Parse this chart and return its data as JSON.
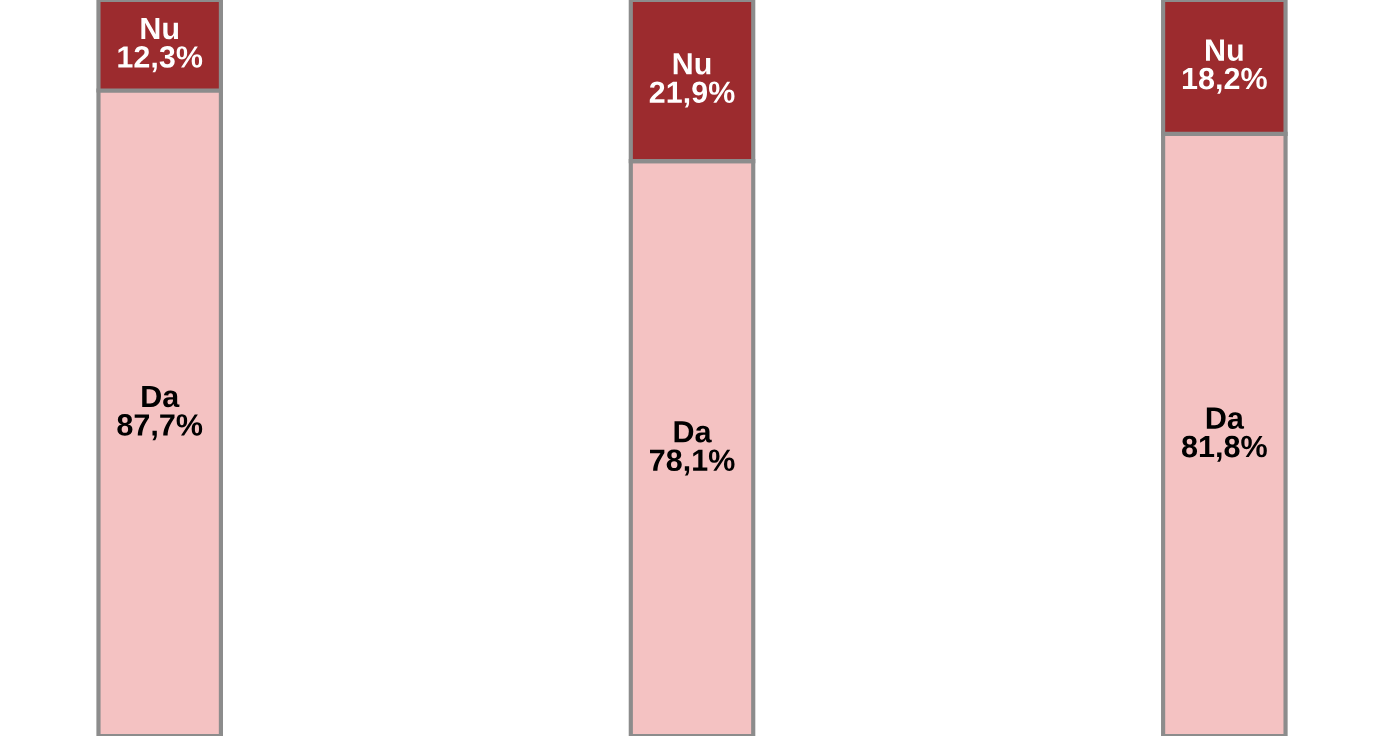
{
  "chart_data": {
    "type": "bar",
    "stacked": true,
    "categories": [
      null,
      null,
      null
    ],
    "ylim": [
      0,
      100
    ],
    "series": [
      {
        "name": "Da",
        "color": "#f4c2c2",
        "values": [
          87.7,
          78.1,
          81.8
        ],
        "value_labels": [
          "87,7%",
          "78,1%",
          "81,8%"
        ]
      },
      {
        "name": "Nu",
        "color": "#9c2b2e",
        "values": [
          12.3,
          21.9,
          18.2
        ],
        "value_labels": [
          "12,3%",
          "21,9%",
          "18,2%"
        ]
      }
    ]
  }
}
